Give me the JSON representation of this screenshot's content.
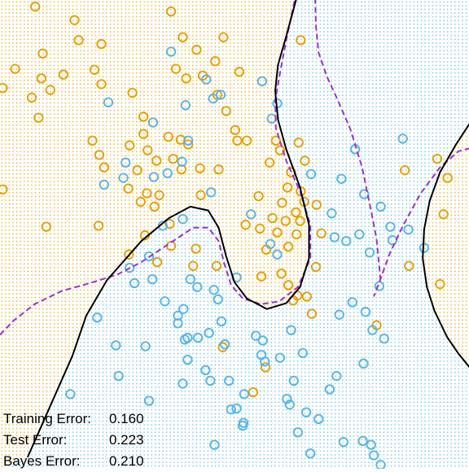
{
  "chart_data": {
    "type": "scatter",
    "title": "",
    "xlabel": "",
    "ylabel": "",
    "xlim": [
      -2.6,
      4.2
    ],
    "ylim": [
      -2.0,
      2.9
    ],
    "grid": false,
    "colors": {
      "orange": "#E69F00",
      "blue": "#56B4E9",
      "model_boundary": "#000000",
      "bayes_boundary": "#9A32CD"
    },
    "series": [
      {
        "color": "orange",
        "points": [
          [
            -2.09,
            2.83
          ],
          [
            -1.52,
            2.69
          ],
          [
            -1.46,
            2.48
          ],
          [
            -1.98,
            2.34
          ],
          [
            -1.13,
            2.44
          ],
          [
            -0.12,
            2.78
          ],
          [
            0.05,
            2.51
          ],
          [
            0.25,
            2.38
          ],
          [
            0.64,
            2.51
          ],
          [
            1.76,
            2.48
          ],
          [
            -2.38,
            2.18
          ],
          [
            -2.0,
            2.08
          ],
          [
            -1.68,
            2.12
          ],
          [
            -1.23,
            2.17
          ],
          [
            -1.13,
            2.02
          ],
          [
            -0.68,
            1.93
          ],
          [
            -0.05,
            2.18
          ],
          [
            0.1,
            2.08
          ],
          [
            0.34,
            2.11
          ],
          [
            0.52,
            2.26
          ],
          [
            0.87,
            2.15
          ],
          [
            -2.56,
            1.98
          ],
          [
            -2.14,
            1.88
          ],
          [
            -1.87,
            1.96
          ],
          [
            -0.52,
            1.68
          ],
          [
            0.55,
            1.91
          ],
          [
            -2.04,
            1.67
          ],
          [
            0.68,
            1.74
          ],
          [
            -0.52,
            1.5
          ],
          [
            0.81,
            1.54
          ],
          [
            0.02,
            1.44
          ],
          [
            -1.26,
            1.43
          ],
          [
            -1.16,
            1.28
          ],
          [
            -0.72,
            1.38
          ],
          [
            -0.16,
            1.47
          ],
          [
            0.13,
            1.39
          ],
          [
            -0.46,
            1.33
          ],
          [
            0.84,
            1.43
          ],
          [
            -1.09,
            1.15
          ],
          [
            -0.33,
            1.22
          ],
          [
            -0.61,
            1.12
          ],
          [
            -0.09,
            1.24
          ],
          [
            0.03,
            1.13
          ],
          [
            0.3,
            1.14
          ],
          [
            0.57,
            1.13
          ],
          [
            0.98,
            1.43
          ],
          [
            1.4,
            1.43
          ],
          [
            1.73,
            1.41
          ],
          [
            1.46,
            1.33
          ],
          [
            1.31,
            1.2
          ],
          [
            1.82,
            1.22
          ],
          [
            1.62,
            1.1
          ],
          [
            -0.74,
            0.93
          ],
          [
            -0.47,
            0.88
          ],
          [
            -0.29,
            0.86
          ],
          [
            -0.56,
            0.79
          ],
          [
            -0.36,
            0.74
          ],
          [
            0.31,
            0.86
          ],
          [
            1.57,
            0.94
          ],
          [
            1.76,
            0.9
          ],
          [
            1.49,
            0.78
          ],
          [
            1.15,
            0.85
          ],
          [
            1.81,
            0.79
          ],
          [
            1.99,
            0.76
          ],
          [
            1.69,
            0.68
          ],
          [
            1.35,
            0.62
          ],
          [
            1.54,
            0.59
          ],
          [
            1.75,
            0.59
          ],
          [
            0.96,
            0.55
          ],
          [
            1.17,
            0.51
          ],
          [
            1.42,
            0.47
          ],
          [
            1.7,
            0.45
          ],
          [
            -2.56,
            0.92
          ],
          [
            -1.93,
            0.53
          ],
          [
            -1.17,
            0.54
          ],
          [
            -0.14,
            0.56
          ],
          [
            -0.5,
            0.44
          ],
          [
            -0.12,
            0.33
          ],
          [
            0.24,
            0.3
          ],
          [
            1.26,
            0.29
          ],
          [
            1.58,
            0.32
          ],
          [
            2.06,
            0.46
          ],
          [
            -0.73,
            0.24
          ],
          [
            -0.32,
            0.16
          ],
          [
            0.2,
            0.12
          ],
          [
            0.54,
            0.12
          ],
          [
            1.48,
            0.04
          ],
          [
            1.19,
            0.01
          ],
          [
            1.98,
            0.11
          ],
          [
            1.58,
            -0.08
          ],
          [
            1.71,
            -0.19
          ],
          [
            1.85,
            -0.2
          ],
          [
            1.65,
            -0.24
          ],
          [
            1.92,
            -0.38
          ],
          [
            0.63,
            -0.73
          ],
          [
            1.25,
            -0.94
          ],
          [
            1.07,
            -1.2
          ],
          [
            3.27,
            1.12
          ],
          [
            3.74,
            1.24
          ],
          [
            3.89,
            1.04
          ],
          [
            3.83,
            0.66
          ],
          [
            3.33,
            0.12
          ],
          [
            3.78,
            -0.07
          ],
          [
            2.86,
            -0.5
          ]
        ]
      },
      {
        "color": "blue",
        "points": [
          [
            -0.12,
            2.36
          ],
          [
            -1.03,
            1.83
          ],
          [
            -0.38,
            1.62
          ],
          [
            -0.78,
            1.2
          ],
          [
            -0.81,
            1.04
          ],
          [
            -1.09,
            0.97
          ],
          [
            -0.37,
            1.05
          ],
          [
            -0.17,
            1.09
          ],
          [
            0.04,
            1.21
          ],
          [
            0.13,
            1.43
          ],
          [
            0.39,
            2.07
          ],
          [
            0.6,
            1.91
          ],
          [
            0.09,
            1.8
          ],
          [
            0.49,
            1.87
          ],
          [
            1.34,
            1.66
          ],
          [
            1.42,
            1.82
          ],
          [
            1.91,
            1.08
          ],
          [
            2.35,
            1.03
          ],
          [
            2.55,
            1.34
          ],
          [
            2.21,
            0.67
          ],
          [
            2.68,
            0.87
          ],
          [
            3.24,
            1.45
          ],
          [
            2.92,
            0.74
          ],
          [
            3.06,
            0.53
          ],
          [
            3.09,
            0.39
          ],
          [
            3.55,
            0.31
          ],
          [
            3.32,
            0.5
          ],
          [
            2.25,
            0.42
          ],
          [
            2.42,
            0.38
          ],
          [
            2.61,
            0.45
          ],
          [
            1.42,
            0.24
          ],
          [
            1.32,
            0.35
          ],
          [
            1.04,
            0.66
          ],
          [
            0.46,
            0.89
          ],
          [
            0.05,
            0.61
          ],
          [
            -0.24,
            0.54
          ],
          [
            -0.44,
            0.22
          ],
          [
            -0.72,
            0.1
          ],
          [
            -0.39,
            -0.02
          ],
          [
            0.16,
            -0.02
          ],
          [
            0.26,
            -0.1
          ],
          [
            0.5,
            -0.13
          ],
          [
            0.56,
            -0.23
          ],
          [
            0.83,
            0.0
          ],
          [
            0.61,
            -0.46
          ],
          [
            0.43,
            -0.58
          ],
          [
            0.27,
            -0.63
          ],
          [
            0.08,
            -0.65
          ],
          [
            0.12,
            -0.63
          ],
          [
            -0.02,
            -0.4
          ],
          [
            -0.02,
            -0.48
          ],
          [
            0.06,
            -0.33
          ],
          [
            -0.21,
            -0.25
          ],
          [
            -0.65,
            -0.06
          ],
          [
            -1.19,
            -0.42
          ],
          [
            -0.92,
            -0.71
          ],
          [
            -0.49,
            -0.72
          ],
          [
            -0.88,
            -1.03
          ],
          [
            0.12,
            -0.86
          ],
          [
            0.38,
            -0.97
          ],
          [
            0.66,
            -0.7
          ],
          [
            0.72,
            -1.08
          ],
          [
            -1.58,
            -1.22
          ],
          [
            -0.44,
            -1.29
          ],
          [
            0.05,
            -1.11
          ],
          [
            0.45,
            -1.08
          ],
          [
            0.75,
            -1.38
          ],
          [
            0.94,
            -1.22
          ],
          [
            1.11,
            -0.61
          ],
          [
            1.19,
            -0.81
          ],
          [
            1.24,
            -0.88
          ],
          [
            1.21,
            -0.66
          ],
          [
            1.46,
            -0.84
          ],
          [
            1.66,
            -1.08
          ],
          [
            1.56,
            -1.27
          ],
          [
            0.83,
            -1.37
          ],
          [
            0.93,
            -1.52
          ],
          [
            0.92,
            -1.55
          ],
          [
            0.51,
            -1.75
          ],
          [
            1.6,
            -1.33
          ],
          [
            2.02,
            -1.48
          ],
          [
            2.18,
            -1.17
          ],
          [
            2.38,
            -1.72
          ],
          [
            1.72,
            -1.62
          ],
          [
            1.9,
            -1.84
          ],
          [
            1.84,
            -1.41
          ],
          [
            2.78,
            -1.75
          ],
          [
            2.82,
            -1.86
          ],
          [
            2.92,
            -1.96
          ],
          [
            2.66,
            -1.71
          ],
          [
            3.18,
            -2.09
          ],
          [
            2.28,
            -1.03
          ],
          [
            2.67,
            -0.9
          ],
          [
            2.97,
            -0.64
          ],
          [
            2.8,
            -0.55
          ],
          [
            2.51,
            -0.26
          ],
          [
            2.32,
            -0.39
          ],
          [
            2.7,
            -0.36
          ],
          [
            1.62,
            -0.55
          ],
          [
            1.79,
            -0.79
          ],
          [
            2.9,
            -0.09
          ],
          [
            2.76,
            0.26
          ],
          [
            1.2,
            2.05
          ]
        ]
      }
    ],
    "boundaries": {
      "model": {
        "segments": [
          [
            [
              -2.2,
              -1.88
            ],
            [
              -1.55,
              -0.82
            ],
            [
              -1.35,
              -0.4
            ],
            [
              -1.05,
              -0.03
            ],
            [
              -0.55,
              0.38
            ],
            [
              -0.15,
              0.62
            ],
            [
              0.16,
              0.74
            ],
            [
              0.42,
              0.7
            ],
            [
              0.57,
              0.52
            ],
            [
              0.68,
              0.22
            ],
            [
              0.8,
              -0.05
            ],
            [
              0.98,
              -0.22
            ],
            [
              1.27,
              -0.33
            ],
            [
              1.55,
              -0.27
            ],
            [
              1.75,
              -0.1
            ],
            [
              1.88,
              0.2
            ],
            [
              1.88,
              0.55
            ],
            [
              1.75,
              0.94
            ],
            [
              1.55,
              1.34
            ],
            [
              1.43,
              1.65
            ],
            [
              1.39,
              1.95
            ],
            [
              1.43,
              2.22
            ],
            [
              1.55,
              2.52
            ],
            [
              1.7,
              2.92
            ]
          ],
          [
            [
              4.22,
              1.62
            ],
            [
              4.02,
              1.4
            ],
            [
              3.78,
              1.1
            ],
            [
              3.63,
              0.8
            ],
            [
              3.55,
              0.5
            ],
            [
              3.53,
              0.2
            ],
            [
              3.59,
              -0.1
            ],
            [
              3.7,
              -0.35
            ],
            [
              3.88,
              -0.62
            ],
            [
              4.05,
              -0.8
            ],
            [
              4.22,
              -0.95
            ]
          ]
        ]
      },
      "bayes": {
        "segments": [
          [
            [
              -2.6,
              -0.6
            ],
            [
              -2.4,
              -0.45
            ],
            [
              -2.1,
              -0.28
            ],
            [
              -1.7,
              -0.14
            ],
            [
              -1.3,
              -0.06
            ],
            [
              -0.9,
              0.03
            ],
            [
              -0.55,
              0.16
            ],
            [
              -0.3,
              0.28
            ],
            [
              -0.05,
              0.4
            ],
            [
              0.2,
              0.52
            ],
            [
              0.42,
              0.52
            ],
            [
              0.57,
              0.38
            ],
            [
              0.65,
              0.15
            ],
            [
              0.75,
              -0.08
            ],
            [
              0.92,
              -0.22
            ],
            [
              1.18,
              -0.28
            ],
            [
              1.45,
              -0.25
            ],
            [
              1.72,
              -0.1
            ],
            [
              1.9,
              0.2
            ],
            [
              1.9,
              0.55
            ],
            [
              1.75,
              0.9
            ],
            [
              1.55,
              1.22
            ],
            [
              1.4,
              1.56
            ],
            [
              1.39,
              1.85
            ],
            [
              1.47,
              2.18
            ],
            [
              1.57,
              2.55
            ],
            [
              1.68,
              2.92
            ]
          ],
          [
            [
              4.22,
              1.35
            ],
            [
              4.05,
              1.32
            ],
            [
              3.78,
              1.15
            ],
            [
              3.5,
              0.88
            ],
            [
              3.25,
              0.55
            ],
            [
              3.05,
              0.25
            ],
            [
              2.9,
              -0.05
            ],
            [
              2.82,
              -0.2
            ]
          ],
          [
            [
              1.97,
              2.92
            ],
            [
              1.98,
              2.63
            ],
            [
              2.02,
              2.35
            ],
            [
              2.14,
              2.1
            ],
            [
              2.28,
              1.88
            ],
            [
              2.48,
              1.55
            ],
            [
              2.65,
              1.15
            ],
            [
              2.78,
              0.7
            ],
            [
              2.86,
              0.4
            ],
            [
              2.9,
              0.1
            ],
            [
              2.92,
              -0.05
            ]
          ]
        ]
      }
    },
    "annotations": [
      {
        "label": "Training Error:",
        "value": "0.160"
      },
      {
        "label": "Test Error:",
        "value": "0.223"
      },
      {
        "label": "Bayes Error:",
        "value": "0.210"
      }
    ]
  }
}
